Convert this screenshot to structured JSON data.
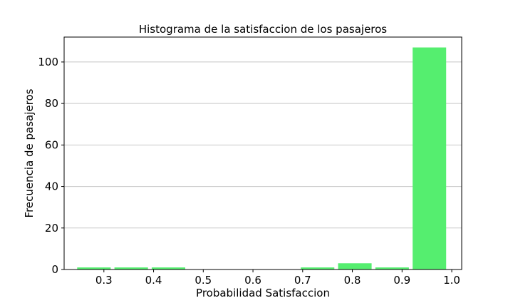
{
  "chart_data": {
    "type": "bar",
    "title": "Histograma de la satisfaccion de los pasajeros",
    "xlabel": "Probabilidad Satisfaccion",
    "ylabel": "Frecuencia de pasajeros",
    "xlim": [
      0.22,
      1.02
    ],
    "ylim": [
      0,
      112
    ],
    "x_ticks": [
      0.3,
      0.4,
      0.5,
      0.6,
      0.7,
      0.8,
      0.9,
      1.0
    ],
    "x_tick_labels": [
      "0.3",
      "0.4",
      "0.5",
      "0.6",
      "0.7",
      "0.8",
      "0.9",
      "1.0"
    ],
    "y_ticks": [
      0,
      20,
      40,
      60,
      80,
      100
    ],
    "y_tick_labels": [
      "0",
      "20",
      "40",
      "60",
      "80",
      "100"
    ],
    "bin_edges": [
      0.2425,
      0.3175,
      0.3925,
      0.4675,
      0.5425,
      0.6175,
      0.6925,
      0.7675,
      0.8425,
      0.9175,
      0.9925
    ],
    "values": [
      1,
      1,
      1,
      0,
      0,
      0,
      1,
      3,
      1,
      107
    ],
    "color": "#55ee6f",
    "grid": "horizontal"
  }
}
